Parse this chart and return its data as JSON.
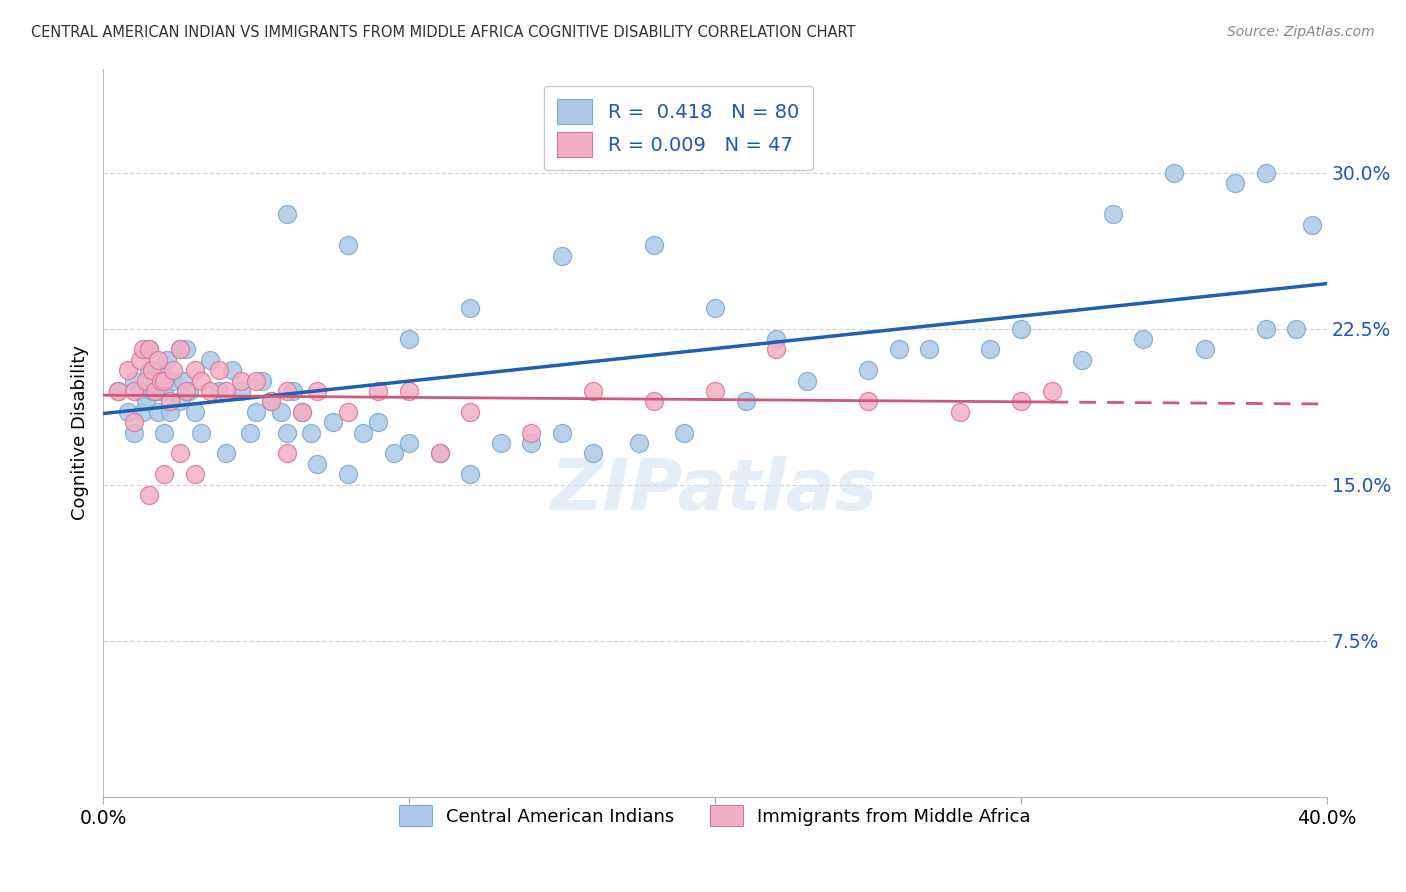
{
  "title": "CENTRAL AMERICAN INDIAN VS IMMIGRANTS FROM MIDDLE AFRICA COGNITIVE DISABILITY CORRELATION CHART",
  "source": "Source: ZipAtlas.com",
  "ylabel": "Cognitive Disability",
  "ytick_labels": [
    "7.5%",
    "15.0%",
    "22.5%",
    "30.0%"
  ],
  "ytick_values": [
    0.075,
    0.15,
    0.225,
    0.3
  ],
  "xlim": [
    0.0,
    0.4
  ],
  "ylim": [
    0.0,
    0.35
  ],
  "blue_R": 0.418,
  "blue_N": 80,
  "pink_R": 0.009,
  "pink_N": 47,
  "blue_color": "#adc8e8",
  "pink_color": "#f2afc4",
  "blue_edge": "#7aaad0",
  "pink_edge": "#d87898",
  "line_blue": "#2060b0",
  "line_pink": "#d05878",
  "legend_label_blue": "Central American Indians",
  "legend_label_pink": "Immigrants from Middle Africa",
  "blue_x": [
    0.005,
    0.008,
    0.01,
    0.01,
    0.012,
    0.013,
    0.014,
    0.015,
    0.015,
    0.016,
    0.017,
    0.018,
    0.018,
    0.019,
    0.02,
    0.02,
    0.021,
    0.022,
    0.023,
    0.025,
    0.025,
    0.026,
    0.027,
    0.028,
    0.03,
    0.032,
    0.035,
    0.038,
    0.04,
    0.042,
    0.045,
    0.048,
    0.05,
    0.052,
    0.055,
    0.058,
    0.06,
    0.062,
    0.065,
    0.068,
    0.07,
    0.075,
    0.08,
    0.085,
    0.09,
    0.095,
    0.1,
    0.11,
    0.12,
    0.13,
    0.14,
    0.15,
    0.16,
    0.175,
    0.19,
    0.21,
    0.23,
    0.25,
    0.27,
    0.3,
    0.32,
    0.34,
    0.36,
    0.38,
    0.06,
    0.08,
    0.1,
    0.12,
    0.15,
    0.18,
    0.2,
    0.22,
    0.26,
    0.29,
    0.33,
    0.35,
    0.37,
    0.38,
    0.39,
    0.395
  ],
  "blue_y": [
    0.195,
    0.185,
    0.2,
    0.175,
    0.195,
    0.185,
    0.19,
    0.205,
    0.215,
    0.195,
    0.2,
    0.185,
    0.195,
    0.205,
    0.195,
    0.175,
    0.21,
    0.185,
    0.2,
    0.19,
    0.215,
    0.2,
    0.215,
    0.195,
    0.185,
    0.175,
    0.21,
    0.195,
    0.165,
    0.205,
    0.195,
    0.175,
    0.185,
    0.2,
    0.19,
    0.185,
    0.175,
    0.195,
    0.185,
    0.175,
    0.16,
    0.18,
    0.155,
    0.175,
    0.18,
    0.165,
    0.17,
    0.165,
    0.155,
    0.17,
    0.17,
    0.175,
    0.165,
    0.17,
    0.175,
    0.19,
    0.2,
    0.205,
    0.215,
    0.225,
    0.21,
    0.22,
    0.215,
    0.225,
    0.28,
    0.265,
    0.22,
    0.235,
    0.26,
    0.265,
    0.235,
    0.22,
    0.215,
    0.215,
    0.28,
    0.3,
    0.295,
    0.3,
    0.225,
    0.275
  ],
  "pink_x": [
    0.005,
    0.008,
    0.01,
    0.012,
    0.013,
    0.014,
    0.015,
    0.016,
    0.017,
    0.018,
    0.019,
    0.02,
    0.022,
    0.023,
    0.025,
    0.027,
    0.03,
    0.032,
    0.035,
    0.038,
    0.04,
    0.045,
    0.05,
    0.055,
    0.06,
    0.065,
    0.07,
    0.08,
    0.09,
    0.1,
    0.11,
    0.12,
    0.14,
    0.16,
    0.18,
    0.2,
    0.22,
    0.25,
    0.28,
    0.31,
    0.01,
    0.015,
    0.02,
    0.025,
    0.03,
    0.06,
    0.3
  ],
  "pink_y": [
    0.195,
    0.205,
    0.195,
    0.21,
    0.215,
    0.2,
    0.215,
    0.205,
    0.195,
    0.21,
    0.2,
    0.2,
    0.19,
    0.205,
    0.215,
    0.195,
    0.205,
    0.2,
    0.195,
    0.205,
    0.195,
    0.2,
    0.2,
    0.19,
    0.195,
    0.185,
    0.195,
    0.185,
    0.195,
    0.195,
    0.165,
    0.185,
    0.175,
    0.195,
    0.19,
    0.195,
    0.215,
    0.19,
    0.185,
    0.195,
    0.18,
    0.145,
    0.155,
    0.165,
    0.155,
    0.165,
    0.19
  ]
}
